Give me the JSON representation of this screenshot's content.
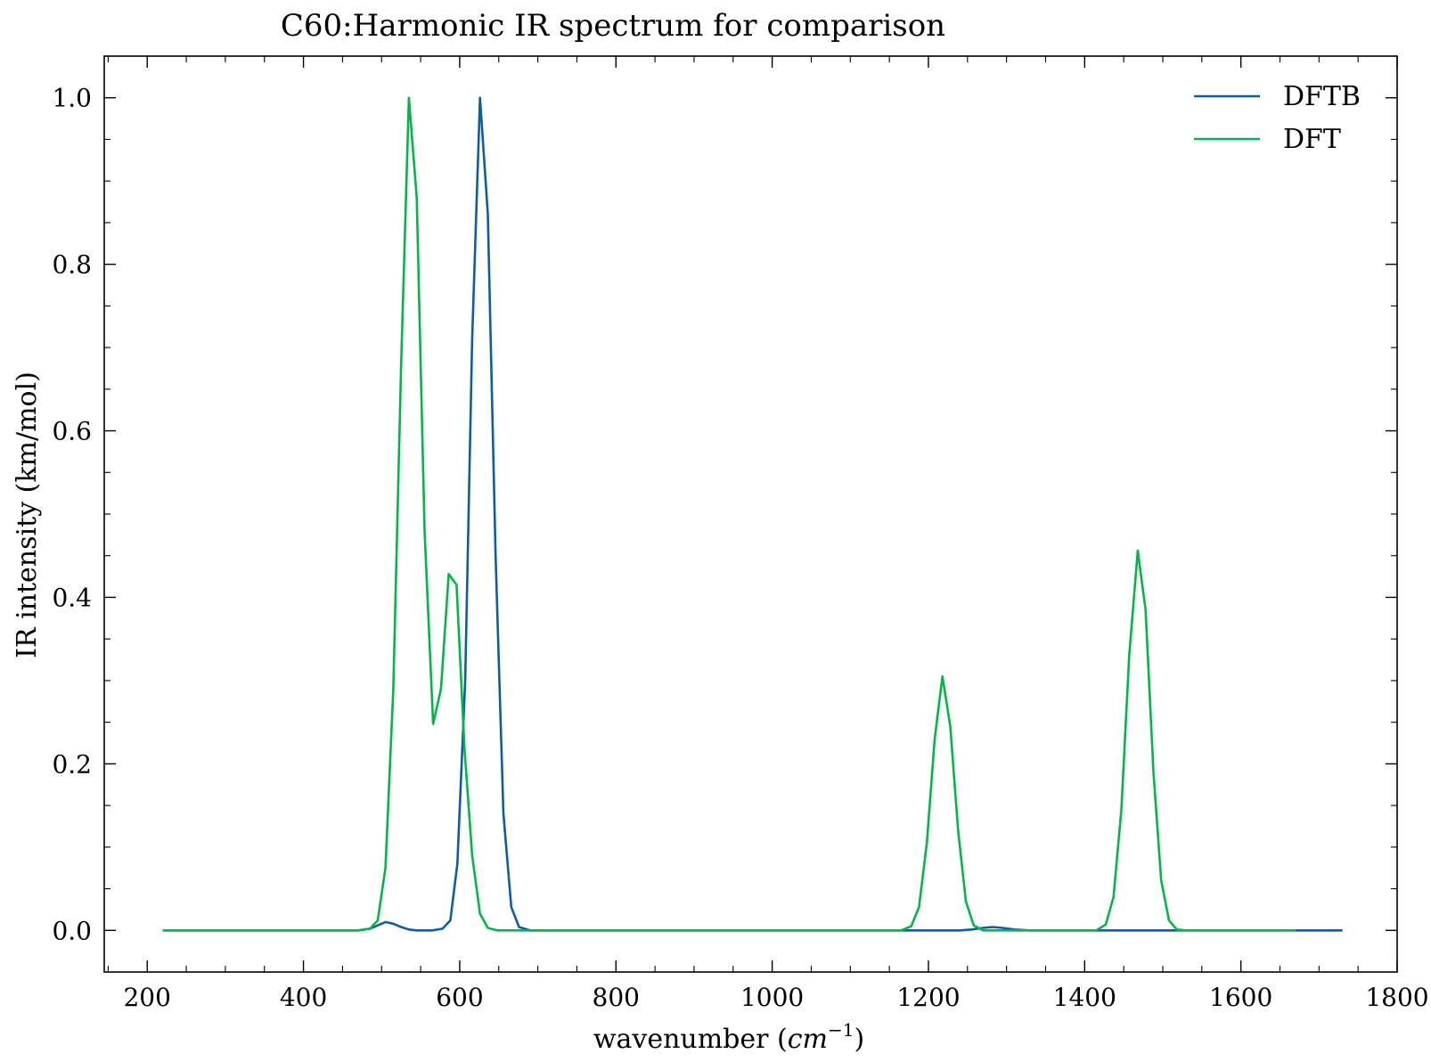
{
  "chart_data": {
    "type": "line",
    "title": "C60:Harmonic IR spectrum for comparison",
    "xlabel_text": "wavenumber (",
    "xlabel_math": "cm",
    "xlabel_exp": "−1",
    "xlabel_close": ")",
    "ylabel": "IR intensity (km/mol)",
    "xlim": [
      145,
      1800
    ],
    "ylim": [
      -0.05,
      1.05
    ],
    "xticks": [
      200,
      400,
      600,
      800,
      1000,
      1200,
      1400,
      1600,
      1800
    ],
    "yticks": [
      0.0,
      0.2,
      0.4,
      0.6,
      0.8,
      1.0
    ],
    "xtick_labels": [
      "200",
      "400",
      "600",
      "800",
      "1000",
      "1200",
      "1400",
      "1600",
      "1800"
    ],
    "ytick_labels": [
      "0.0",
      "0.2",
      "0.4",
      "0.6",
      "0.8",
      "1.0"
    ],
    "legend_position": "top-right",
    "grid": false,
    "series": [
      {
        "name": "DFTB",
        "color": "#0c5da5",
        "points": [
          [
            220,
            0.0
          ],
          [
            470,
            0.0
          ],
          [
            485,
            0.002
          ],
          [
            495,
            0.006
          ],
          [
            505,
            0.01
          ],
          [
            515,
            0.008
          ],
          [
            525,
            0.004
          ],
          [
            535,
            0.001
          ],
          [
            545,
            0.0
          ],
          [
            565,
            0.0
          ],
          [
            578,
            0.002
          ],
          [
            588,
            0.012
          ],
          [
            597,
            0.08
          ],
          [
            607,
            0.3
          ],
          [
            616,
            0.71
          ],
          [
            626,
            1.0
          ],
          [
            636,
            0.86
          ],
          [
            646,
            0.45
          ],
          [
            656,
            0.14
          ],
          [
            666,
            0.028
          ],
          [
            676,
            0.004
          ],
          [
            690,
            0.0
          ],
          [
            1240,
            0.0
          ],
          [
            1255,
            0.001
          ],
          [
            1270,
            0.003
          ],
          [
            1282,
            0.004
          ],
          [
            1295,
            0.003
          ],
          [
            1310,
            0.001
          ],
          [
            1330,
            0.0
          ],
          [
            1730,
            0.0
          ]
        ]
      },
      {
        "name": "DFT",
        "color": "#00b945",
        "points": [
          [
            220,
            0.0
          ],
          [
            470,
            0.0
          ],
          [
            485,
            0.002
          ],
          [
            495,
            0.012
          ],
          [
            505,
            0.075
          ],
          [
            515,
            0.29
          ],
          [
            525,
            0.68
          ],
          [
            535,
            1.0
          ],
          [
            545,
            0.88
          ],
          [
            555,
            0.48
          ],
          [
            566,
            0.248
          ],
          [
            576,
            0.29
          ],
          [
            586,
            0.428
          ],
          [
            596,
            0.415
          ],
          [
            606,
            0.22
          ],
          [
            616,
            0.09
          ],
          [
            626,
            0.02
          ],
          [
            636,
            0.003
          ],
          [
            648,
            0.0
          ],
          [
            1165,
            0.0
          ],
          [
            1178,
            0.005
          ],
          [
            1188,
            0.028
          ],
          [
            1198,
            0.105
          ],
          [
            1208,
            0.23
          ],
          [
            1218,
            0.305
          ],
          [
            1228,
            0.245
          ],
          [
            1238,
            0.12
          ],
          [
            1248,
            0.035
          ],
          [
            1258,
            0.006
          ],
          [
            1270,
            0.0
          ],
          [
            1415,
            0.0
          ],
          [
            1427,
            0.007
          ],
          [
            1437,
            0.04
          ],
          [
            1447,
            0.145
          ],
          [
            1457,
            0.33
          ],
          [
            1468,
            0.456
          ],
          [
            1478,
            0.385
          ],
          [
            1488,
            0.19
          ],
          [
            1498,
            0.06
          ],
          [
            1508,
            0.012
          ],
          [
            1518,
            0.001
          ],
          [
            1530,
            0.0
          ],
          [
            1670,
            0.0
          ]
        ]
      }
    ]
  }
}
